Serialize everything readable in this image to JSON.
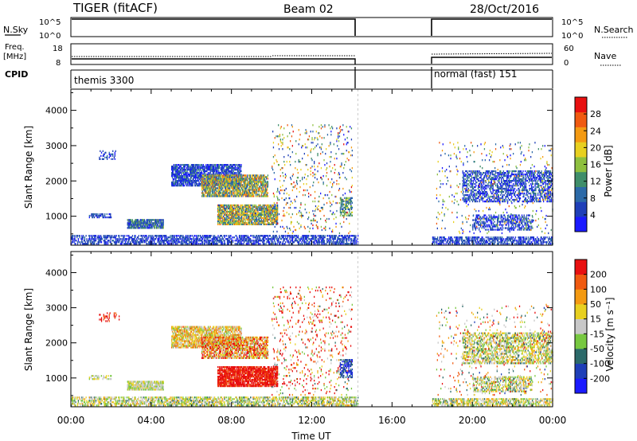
{
  "header": {
    "title": "TIGER (fitACF)",
    "beam": "Beam 02",
    "date": "28/Oct/2016"
  },
  "aux_panels": {
    "nsky": {
      "label": "N.Sky",
      "tick_top": "10^5",
      "tick_bottom": "10^0",
      "right_tick_top": "10^5",
      "right_tick_bottom": "10^0",
      "right_label": "N.Search"
    },
    "freq": {
      "label_line1": "Freq.",
      "label_line2": "[MHz]",
      "tick_top": "18",
      "tick_bottom": "8",
      "right_tick_top": "60",
      "right_tick_bottom": "0",
      "right_label": "Nave"
    },
    "cpid": {
      "label": "CPID",
      "mode1": "themis 3300",
      "mode2": "normal (fast) 151"
    }
  },
  "colors": {
    "power": [
      "#1a1aff",
      "#1f3fb8",
      "#2c6aa8",
      "#3f8e6a",
      "#8ec03f",
      "#e8d020",
      "#f49a12",
      "#f05a10",
      "#e81010"
    ],
    "velocity": [
      "#1a1aff",
      "#1f3fb8",
      "#2c6a6a",
      "#77c840",
      "#c8c8c8",
      "#e8d020",
      "#f49a12",
      "#f05a10",
      "#e81010"
    ]
  },
  "chart_data": [
    {
      "type": "heatmap",
      "name": "power",
      "ylabel": "Slant Range [km]",
      "xlabel": "",
      "colorbar_label": "Power [dB]",
      "colorbar_ticks": [
        "4",
        "8",
        "12",
        "16",
        "20",
        "24",
        "28"
      ],
      "x_ticks": [
        "00:00",
        "04:00",
        "08:00",
        "12:00",
        "16:00",
        "20:00",
        "00:00"
      ],
      "y_ticks": [
        "1000",
        "2000",
        "3000",
        "4000"
      ],
      "xlim": [
        0,
        24
      ],
      "ylim": [
        180,
        4600
      ],
      "data_gap": [
        14.3,
        18.0
      ],
      "echo_regions": [
        {
          "t0": 0.0,
          "t1": 14.3,
          "r0": 200,
          "r1": 450,
          "density": 0.55,
          "level": 1,
          "spread": 1
        },
        {
          "t0": 0.9,
          "t1": 2.0,
          "r0": 950,
          "r1": 1060,
          "density": 0.5,
          "level": 1,
          "spread": 1
        },
        {
          "t0": 2.8,
          "t1": 4.6,
          "r0": 650,
          "r1": 900,
          "density": 0.8,
          "level": 2,
          "spread": 2
        },
        {
          "t0": 5.0,
          "t1": 8.5,
          "r0": 1850,
          "r1": 2450,
          "density": 0.7,
          "level": 1,
          "spread": 2
        },
        {
          "t0": 6.5,
          "t1": 9.8,
          "r0": 1550,
          "r1": 2150,
          "density": 0.75,
          "level": 4,
          "spread": 3
        },
        {
          "t0": 7.3,
          "t1": 10.3,
          "r0": 750,
          "r1": 1300,
          "density": 0.75,
          "level": 4,
          "spread": 3
        },
        {
          "t0": 10.0,
          "t1": 14.0,
          "r0": 500,
          "r1": 3600,
          "density": 0.07,
          "level": 4,
          "spread": 4
        },
        {
          "t0": 13.4,
          "t1": 14.0,
          "r0": 1000,
          "r1": 1500,
          "density": 0.5,
          "level": 3,
          "spread": 2
        },
        {
          "t0": 1.4,
          "t1": 2.4,
          "r0": 2600,
          "r1": 2850,
          "density": 0.2,
          "level": 1,
          "spread": 1
        },
        {
          "t0": 18.0,
          "t1": 24.0,
          "r0": 200,
          "r1": 420,
          "density": 0.55,
          "level": 1,
          "spread": 1
        },
        {
          "t0": 19.5,
          "t1": 24.0,
          "r0": 1400,
          "r1": 2300,
          "density": 0.45,
          "level": 1,
          "spread": 2
        },
        {
          "t0": 20.0,
          "t1": 23.0,
          "r0": 600,
          "r1": 1050,
          "density": 0.45,
          "level": 1,
          "spread": 2
        },
        {
          "t0": 18.2,
          "t1": 24.0,
          "r0": 500,
          "r1": 3100,
          "density": 0.04,
          "level": 3,
          "spread": 4
        }
      ]
    },
    {
      "type": "heatmap",
      "name": "velocity",
      "ylabel": "Slant Range [km]",
      "xlabel": "Time UT",
      "colorbar_label": "Velocity [m s⁻¹]",
      "colorbar_ticks": [
        "-200",
        "-100",
        "-50",
        "-15",
        "15",
        "50",
        "100",
        "200"
      ],
      "x_ticks": [
        "00:00",
        "04:00",
        "08:00",
        "12:00",
        "16:00",
        "20:00",
        "00:00"
      ],
      "y_ticks": [
        "1000",
        "2000",
        "3000",
        "4000"
      ],
      "xlim": [
        0,
        24
      ],
      "ylim": [
        180,
        4600
      ],
      "data_gap": [
        14.3,
        18.0
      ],
      "echo_regions": [
        {
          "t0": 0.0,
          "t1": 14.3,
          "r0": 200,
          "r1": 450,
          "density": 0.55,
          "level": 4,
          "spread": 2
        },
        {
          "t0": 0.9,
          "t1": 2.0,
          "r0": 950,
          "r1": 1060,
          "density": 0.45,
          "level": 4,
          "spread": 1
        },
        {
          "t0": 2.8,
          "t1": 4.6,
          "r0": 650,
          "r1": 900,
          "density": 0.8,
          "level": 4,
          "spread": 1
        },
        {
          "t0": 5.0,
          "t1": 8.5,
          "r0": 1850,
          "r1": 2450,
          "density": 0.7,
          "level": 5,
          "spread": 2
        },
        {
          "t0": 6.5,
          "t1": 9.8,
          "r0": 1550,
          "r1": 2150,
          "density": 0.7,
          "level": 6,
          "spread": 3
        },
        {
          "t0": 7.3,
          "t1": 10.3,
          "r0": 750,
          "r1": 1300,
          "density": 0.8,
          "level": 8,
          "spread": 1
        },
        {
          "t0": 10.0,
          "t1": 14.0,
          "r0": 500,
          "r1": 3600,
          "density": 0.08,
          "level": 7,
          "spread": 5
        },
        {
          "t0": 13.4,
          "t1": 14.0,
          "r0": 1000,
          "r1": 1500,
          "density": 0.5,
          "level": 1,
          "spread": 1
        },
        {
          "t0": 1.4,
          "t1": 2.4,
          "r0": 2600,
          "r1": 2850,
          "density": 0.2,
          "level": 8,
          "spread": 1
        },
        {
          "t0": 18.0,
          "t1": 24.0,
          "r0": 200,
          "r1": 420,
          "density": 0.55,
          "level": 4,
          "spread": 2
        },
        {
          "t0": 19.5,
          "t1": 24.0,
          "r0": 1400,
          "r1": 2300,
          "density": 0.45,
          "level": 4,
          "spread": 2
        },
        {
          "t0": 20.0,
          "t1": 23.0,
          "r0": 600,
          "r1": 1050,
          "density": 0.45,
          "level": 4,
          "spread": 2
        },
        {
          "t0": 18.2,
          "t1": 24.0,
          "r0": 500,
          "r1": 3100,
          "density": 0.04,
          "level": 5,
          "spread": 4
        }
      ]
    }
  ]
}
